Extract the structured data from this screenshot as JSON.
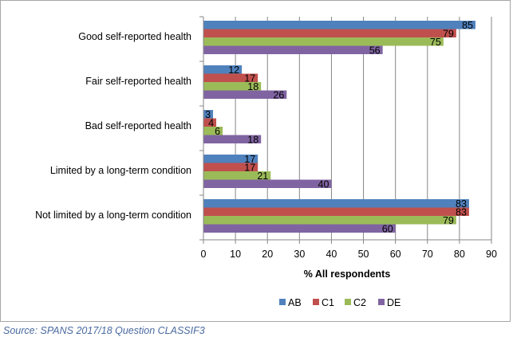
{
  "chart_data": {
    "type": "bar",
    "orientation": "horizontal",
    "categories": [
      "Good self-reported health",
      "Fair self-reported health",
      "Bad self-reported health",
      "Limited  by a long-term condition",
      "Not limited by a long-term condition"
    ],
    "series": [
      {
        "name": "AB",
        "color": "#4f81bd",
        "values": [
          85,
          12,
          3,
          17,
          83
        ]
      },
      {
        "name": "C1",
        "color": "#c0504d",
        "values": [
          79,
          17,
          4,
          17,
          83
        ]
      },
      {
        "name": "C2",
        "color": "#9bbb59",
        "values": [
          75,
          18,
          6,
          21,
          79
        ]
      },
      {
        "name": "DE",
        "color": "#8064a2",
        "values": [
          56,
          26,
          18,
          40,
          60
        ]
      }
    ],
    "xlabel": "% All respondents",
    "xlim": [
      0,
      90
    ],
    "xticks": [
      "0",
      "10",
      "20",
      "30",
      "40",
      "50",
      "60",
      "70",
      "80",
      "90"
    ],
    "grid": true,
    "legend_position": "bottom"
  },
  "source": "Source: SPANS 2017/18 Question CLASSIF3"
}
